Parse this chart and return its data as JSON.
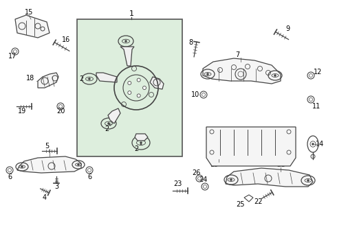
{
  "background_color": "#ffffff",
  "box_color": "#ddeedd",
  "box_border_color": "#555555",
  "line_color": "#444444",
  "text_color": "#000000",
  "fig_width": 4.9,
  "fig_height": 3.6,
  "dpi": 100
}
